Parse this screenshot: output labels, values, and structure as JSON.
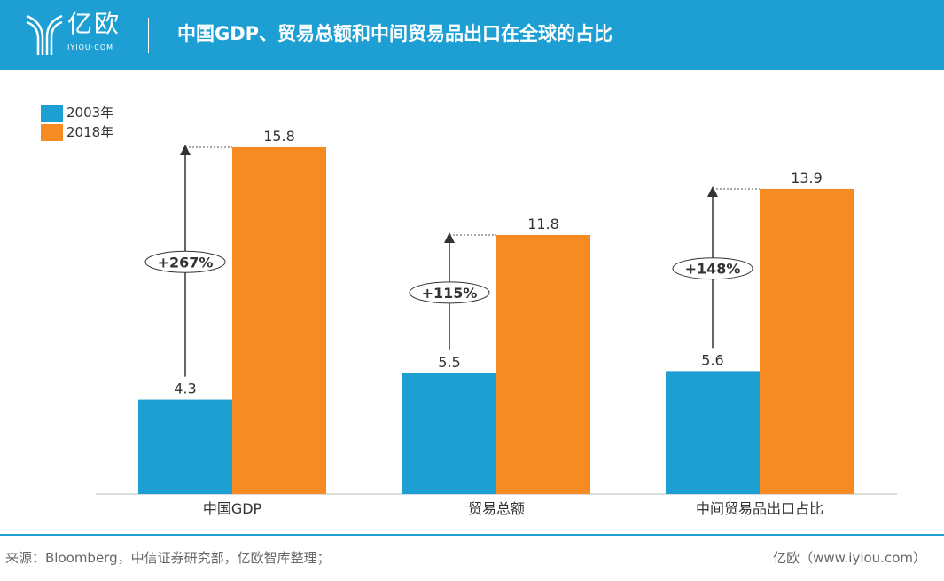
{
  "header": {
    "logo_text": "亿欧",
    "logo_sub": "IYIOU·COM",
    "title": "中国GDP、贸易总额和中间贸易品出口在全球的占比"
  },
  "colors": {
    "header": "#1e9fd4",
    "s2003": "#1e9fd4",
    "s2018": "#f68b24"
  },
  "chart_data": {
    "type": "bar",
    "categories": [
      "中国GDP",
      "贸易总额",
      "中间贸易品出口占比"
    ],
    "series": [
      {
        "name": "2003年",
        "values": [
          4.3,
          5.5,
          5.6
        ]
      },
      {
        "name": "2018年",
        "values": [
          15.8,
          11.8,
          13.9
        ]
      }
    ],
    "annotations": [
      "+267%",
      "+115%",
      "+148%"
    ],
    "ylim": [
      0,
      15.8
    ],
    "legend": "top-left",
    "grid": false
  },
  "footer": {
    "source": "来源：Bloomberg，中信证券研究部，亿欧智库整理；",
    "credit": "亿欧（www.iyiou.com）"
  }
}
